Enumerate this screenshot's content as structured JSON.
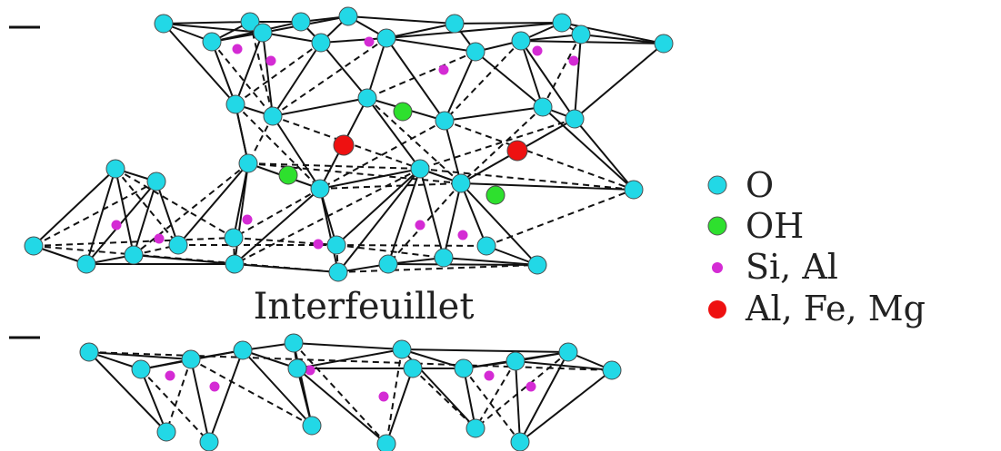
{
  "interlayer_label": "Interfeuillet",
  "legend": [
    {
      "label": "O",
      "color": "#22d8e6",
      "icon": "oxygen-dot"
    },
    {
      "label": "OH",
      "color": "#2ee02e",
      "icon": "hydroxyl-dot"
    },
    {
      "label": "Si, Al",
      "color": "#d42bd4",
      "icon": "si-al-dot"
    },
    {
      "label": "Al, Fe, Mg",
      "color": "#ee1111",
      "icon": "octahedral-cation-dot"
    }
  ],
  "colors": {
    "oxygen": "#22d8e6",
    "hydroxyl": "#2ee02e",
    "tetrahedral_cation": "#d42bd4",
    "octahedral_cation": "#ee1111",
    "bond": "#111111"
  }
}
